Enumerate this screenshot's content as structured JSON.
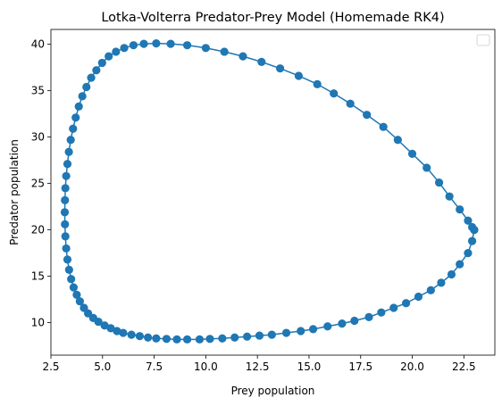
{
  "chart_data": {
    "type": "scatter",
    "title": "Lotka-Volterra Predator-Prey Model (Homemade RK4)",
    "xlabel": "Prey population",
    "ylabel": "Predator population",
    "xlim": [
      2.5,
      24.0
    ],
    "ylim": [
      6.5,
      41.6
    ],
    "xticks": [
      2.5,
      5.0,
      7.5,
      10.0,
      12.5,
      15.0,
      17.5,
      20.0,
      22.5
    ],
    "xtick_labels": [
      "2.5",
      "5.0",
      "7.5",
      "10.0",
      "12.5",
      "15.0",
      "17.5",
      "20.0",
      "22.5"
    ],
    "yticks": [
      10,
      15,
      20,
      25,
      30,
      35,
      40
    ],
    "ytick_labels": [
      "10",
      "15",
      "20",
      "25",
      "30",
      "35",
      "40"
    ],
    "grid": false,
    "legend": "top-right, empty",
    "color": "#1f77b4",
    "x": [
      23.0,
      22.9,
      22.7,
      22.3,
      21.9,
      21.4,
      20.9,
      20.3,
      19.7,
      19.1,
      18.5,
      17.9,
      17.2,
      16.6,
      15.9,
      15.2,
      14.6,
      13.9,
      13.2,
      12.6,
      12.0,
      11.4,
      10.8,
      10.2,
      9.7,
      9.1,
      8.6,
      8.1,
      7.6,
      7.2,
      6.8,
      6.4,
      6.0,
      5.7,
      5.4,
      5.1,
      4.8,
      4.55,
      4.3,
      4.1,
      3.9,
      3.75,
      3.6,
      3.48,
      3.38,
      3.3,
      3.24,
      3.2,
      3.18,
      3.17,
      3.18,
      3.2,
      3.24,
      3.3,
      3.37,
      3.46,
      3.57,
      3.7,
      3.85,
      4.02,
      4.22,
      4.45,
      4.7,
      4.98,
      5.3,
      5.65,
      6.05,
      6.5,
      7.0,
      7.6,
      8.3,
      9.1,
      10.0,
      10.9,
      11.8,
      12.7,
      13.6,
      14.5,
      15.4,
      16.2,
      17.0,
      17.8,
      18.6,
      19.3,
      20.0,
      20.7,
      21.3,
      21.8,
      22.3,
      22.7,
      22.9,
      23.0
    ],
    "y": [
      20.0,
      18.8,
      17.5,
      16.3,
      15.2,
      14.3,
      13.5,
      12.8,
      12.1,
      11.6,
      11.1,
      10.6,
      10.2,
      9.9,
      9.6,
      9.3,
      9.1,
      8.9,
      8.7,
      8.6,
      8.5,
      8.4,
      8.3,
      8.25,
      8.2,
      8.2,
      8.2,
      8.25,
      8.3,
      8.4,
      8.55,
      8.7,
      8.9,
      9.1,
      9.4,
      9.7,
      10.1,
      10.5,
      11.0,
      11.6,
      12.3,
      13.0,
      13.8,
      14.7,
      15.7,
      16.8,
      18.0,
      19.3,
      20.6,
      21.9,
      23.2,
      24.5,
      25.8,
      27.1,
      28.4,
      29.7,
      30.9,
      32.1,
      33.3,
      34.4,
      35.4,
      36.4,
      37.2,
      38.0,
      38.7,
      39.2,
      39.6,
      39.9,
      40.05,
      40.1,
      40.05,
      39.9,
      39.6,
      39.2,
      38.7,
      38.1,
      37.4,
      36.6,
      35.7,
      34.7,
      33.6,
      32.4,
      31.1,
      29.7,
      28.2,
      26.7,
      25.1,
      23.6,
      22.2,
      21.0,
      20.3,
      20.0
    ]
  }
}
